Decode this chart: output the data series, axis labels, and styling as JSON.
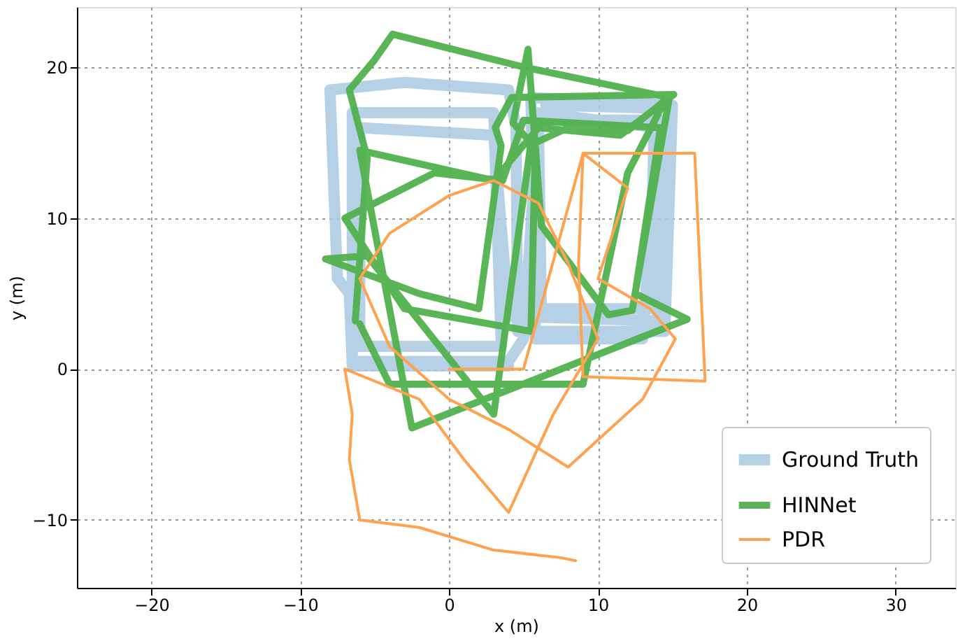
{
  "chart_data": {
    "type": "line",
    "xlabel": "x (m)",
    "ylabel": "y (m)",
    "xlim": [
      -25,
      34
    ],
    "ylim": [
      -14.5,
      24
    ],
    "xticks": [
      -20,
      -10,
      0,
      10,
      20,
      30
    ],
    "yticks": [
      -10,
      0,
      10,
      20
    ],
    "grid": true,
    "legend": "bottom right",
    "marker": "none",
    "line_style": "solid",
    "series": [
      {
        "name": "Ground Truth",
        "color": "#a9c9e2",
        "x": [
          4,
          -6.5,
          -6.7,
          -7.5,
          -8,
          -3,
          4,
          4.5,
          4.6,
          14.5,
          15,
          5.5,
          5.8,
          13,
          14,
          6,
          5,
          4,
          -6.5,
          -6.5,
          3,
          3.5,
          -6,
          -6,
          3,
          4,
          14,
          14.5,
          6,
          6.2,
          13.5,
          13.8,
          6.5
        ],
        "values": [
          0.2,
          0.2,
          5,
          6,
          18.5,
          19,
          18.5,
          16,
          2.5,
          2.5,
          17.5,
          18,
          2,
          2,
          16,
          17,
          2,
          0.5,
          0.5,
          17,
          17,
          1.5,
          1.5,
          16,
          15.5,
          3.5,
          3.2,
          16.5,
          16.5,
          4,
          4,
          17.3,
          17.5
        ]
      },
      {
        "name": "HINNet",
        "color": "#4daf4a",
        "x": [
          -6.3,
          -5.5,
          -6.7,
          -5,
          -3.8,
          5.1,
          14.8,
          12.3,
          10.7,
          6.2,
          5.3,
          4.3,
          5.5,
          3,
          -5.5,
          -8.3,
          -2,
          2,
          3.5,
          3.1,
          4.2,
          15.1,
          11.5,
          6,
          3,
          -6,
          -2.5,
          16,
          12.5,
          14.2,
          5,
          3.6,
          -1,
          -7,
          -3,
          5.5,
          5.8,
          8,
          12,
          14.5,
          12,
          9,
          -4,
          -6
        ],
        "values": [
          3.2,
          14,
          18.5,
          20.5,
          22.2,
          20,
          18,
          3.9,
          3.6,
          9.5,
          21.2,
          16.3,
          15,
          -3,
          7.5,
          7.3,
          5,
          4,
          14.8,
          16,
          18,
          18.2,
          15.5,
          16,
          12.5,
          14.5,
          -3.9,
          3.3,
          5,
          16,
          16.5,
          12.5,
          13,
          10,
          4,
          2.5,
          15,
          16,
          15.8,
          17.8,
          13,
          -1,
          -1,
          3
        ]
      },
      {
        "name": "PDR",
        "color": "#ffa24f",
        "x": [
          0,
          5,
          9,
          16.5,
          17.2,
          9,
          8.7,
          9,
          12,
          10,
          13.5,
          15.2,
          13,
          8,
          4,
          0,
          -4,
          -6,
          -4,
          0,
          3,
          6,
          8,
          10,
          7,
          4,
          1,
          -2,
          -7,
          -6.5,
          -6.7,
          -6,
          -2,
          3,
          7.5,
          8.5
        ],
        "values": [
          0,
          0,
          14.3,
          14.3,
          -0.8,
          -0.5,
          7,
          14.3,
          12,
          6,
          4,
          2,
          -2,
          -6.5,
          -4,
          -2,
          1.5,
          6,
          9,
          11.5,
          12.5,
          11,
          7,
          2,
          -3,
          -9.5,
          -6,
          -2,
          0,
          -3,
          -6,
          -10,
          -10.5,
          -12,
          -12.5,
          -12.7
        ]
      }
    ]
  }
}
